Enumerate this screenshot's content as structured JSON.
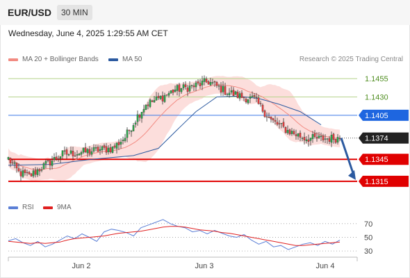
{
  "header": {
    "pair": "EUR/USD",
    "timeframe": "30 MIN"
  },
  "datetime": "Wednesday, June 4, 2025 1:29:55 AM CET",
  "legend": {
    "ma20": {
      "label": "MA 20 + Bollinger Bands",
      "color": "#f28b82"
    },
    "ma50": {
      "label": "MA 50",
      "color": "#2c5aa0"
    },
    "rsi": {
      "label": "RSI",
      "color": "#5b7fd6"
    },
    "ma9": {
      "label": "9MA",
      "color": "#e02020"
    }
  },
  "copyright": "Research © 2025 Trading Central",
  "chart_data": [
    {
      "type": "candlestick",
      "ylim": [
        1.1295,
        1.1475
      ],
      "x_ticks": [
        {
          "label": "Jun 2",
          "bar": 35
        },
        {
          "label": "Jun 3",
          "bar": 94
        },
        {
          "label": "Jun 4",
          "bar": 152
        }
      ],
      "horizontal_levels": [
        {
          "value": 1.1455,
          "label": "1.1455",
          "kind": "resistance",
          "color": "#8ab640"
        },
        {
          "value": 1.143,
          "label": "1.1430",
          "kind": "resistance",
          "color": "#8ab640"
        },
        {
          "value": 1.1405,
          "label": "1.1405",
          "kind": "pivot",
          "color": "#1e66e0"
        },
        {
          "value": 1.1374,
          "label": "1.1374",
          "kind": "last price",
          "color": "#222222"
        },
        {
          "value": 1.1345,
          "label": "1.1345",
          "kind": "support",
          "color": "#e00000"
        },
        {
          "value": 1.1315,
          "label": "1.1315",
          "kind": "support",
          "color": "#e00000"
        }
      ],
      "forecast_arrow": {
        "from": 1.1374,
        "to": 1.1315,
        "color": "#2c5aa0"
      },
      "candles_summary": {
        "bars": 160,
        "path": [
          [
            0,
            1.1346
          ],
          [
            5,
            1.1327
          ],
          [
            10,
            1.1322
          ],
          [
            18,
            1.1338
          ],
          [
            26,
            1.1352
          ],
          [
            34,
            1.1354
          ],
          [
            44,
            1.1358
          ],
          [
            50,
            1.136
          ],
          [
            56,
            1.1375
          ],
          [
            62,
            1.1404
          ],
          [
            66,
            1.142
          ],
          [
            74,
            1.143
          ],
          [
            80,
            1.144
          ],
          [
            88,
            1.1444
          ],
          [
            96,
            1.1451
          ],
          [
            104,
            1.1438
          ],
          [
            112,
            1.143
          ],
          [
            118,
            1.1427
          ],
          [
            126,
            1.1398
          ],
          [
            134,
            1.1384
          ],
          [
            142,
            1.1374
          ],
          [
            150,
            1.1373
          ],
          [
            159,
            1.1374
          ]
        ]
      },
      "ma50": [
        [
          0,
          1.1337
        ],
        [
          20,
          1.1338
        ],
        [
          40,
          1.1345
        ],
        [
          60,
          1.135
        ],
        [
          72,
          1.136
        ],
        [
          82,
          1.1388
        ],
        [
          90,
          1.141
        ],
        [
          100,
          1.143
        ],
        [
          110,
          1.1431
        ],
        [
          120,
          1.1428
        ],
        [
          130,
          1.142
        ],
        [
          140,
          1.141
        ],
        [
          150,
          1.1392
        ]
      ]
    },
    {
      "type": "line",
      "title": "RSI",
      "ylim": [
        25,
        80
      ],
      "y_ticks": [
        70,
        50,
        30
      ],
      "series": [
        {
          "name": "RSI",
          "color": "#5b7fd6",
          "values": [
            45,
            48,
            42,
            38,
            44,
            36,
            40,
            46,
            52,
            48,
            55,
            50,
            44,
            58,
            62,
            60,
            57,
            52,
            64,
            68,
            72,
            76,
            70,
            66,
            64,
            58,
            60,
            55,
            60,
            56,
            52,
            50,
            54,
            46,
            40,
            44,
            36,
            38,
            32,
            36,
            40,
            42,
            38,
            44,
            40,
            46
          ]
        },
        {
          "name": "9MA",
          "color": "#e02020",
          "values": [
            44,
            43,
            42,
            41,
            42,
            41,
            42,
            43,
            46,
            48,
            49,
            50,
            51,
            52,
            54,
            56,
            57,
            58,
            59,
            61,
            63,
            65,
            66,
            66,
            65,
            63,
            61,
            60,
            59,
            57,
            56,
            54,
            52,
            50,
            48,
            46,
            44,
            42,
            40,
            38,
            38,
            39,
            40,
            41,
            42,
            43
          ]
        }
      ]
    }
  ]
}
